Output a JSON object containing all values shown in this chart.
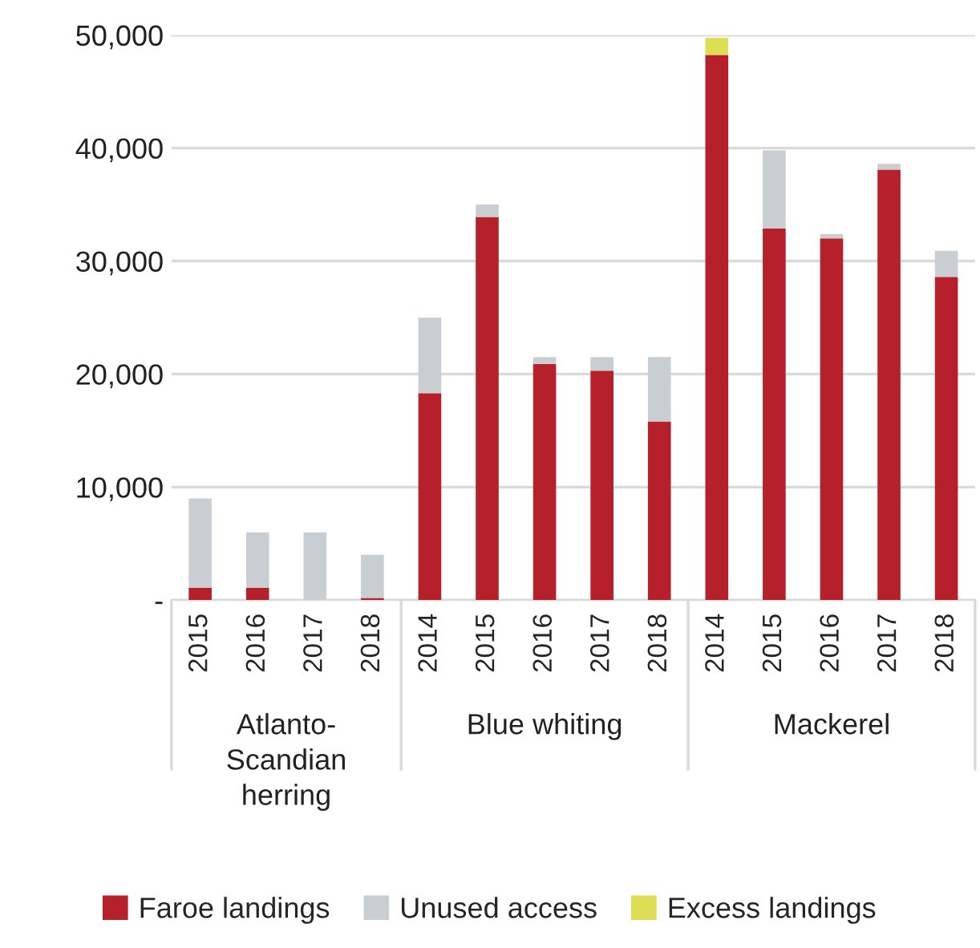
{
  "chart_data": {
    "type": "bar",
    "stacked": true,
    "categories": [
      "2015",
      "2016",
      "2017",
      "2018",
      "2014",
      "2015",
      "2016",
      "2017",
      "2018",
      "2014",
      "2015",
      "2016",
      "2017",
      "2018"
    ],
    "series": [
      {
        "name": "Faroe landings",
        "color": "#b5202a",
        "values": [
          1100,
          1100,
          0,
          200,
          18300,
          33900,
          20900,
          20300,
          15800,
          48250,
          32900,
          32000,
          38100,
          28600
        ]
      },
      {
        "name": "Unused access",
        "color": "#c8ced1",
        "values": [
          7900,
          4900,
          6000,
          3800,
          6700,
          1100,
          600,
          1200,
          5700,
          0,
          6900,
          400,
          500,
          2300
        ]
      },
      {
        "name": "Excess landings",
        "color": "#dede52",
        "values": [
          0,
          0,
          0,
          0,
          0,
          0,
          0,
          0,
          0,
          1500,
          0,
          0,
          0,
          0
        ]
      }
    ],
    "ylim": [
      0,
      50000
    ],
    "yticks": [
      {
        "value": 0,
        "label": "-"
      },
      {
        "value": 10000,
        "label": "10,000"
      },
      {
        "value": 20000,
        "label": "20,000"
      },
      {
        "value": 30000,
        "label": "30,000"
      },
      {
        "value": 40000,
        "label": "40,000"
      },
      {
        "value": 50000,
        "label": "50,000"
      }
    ],
    "annotations": [
      "Atlanto-\nScandian\nherring",
      "Blue whiting",
      "Mackerel"
    ],
    "grid": "y",
    "legend": "bottom"
  }
}
